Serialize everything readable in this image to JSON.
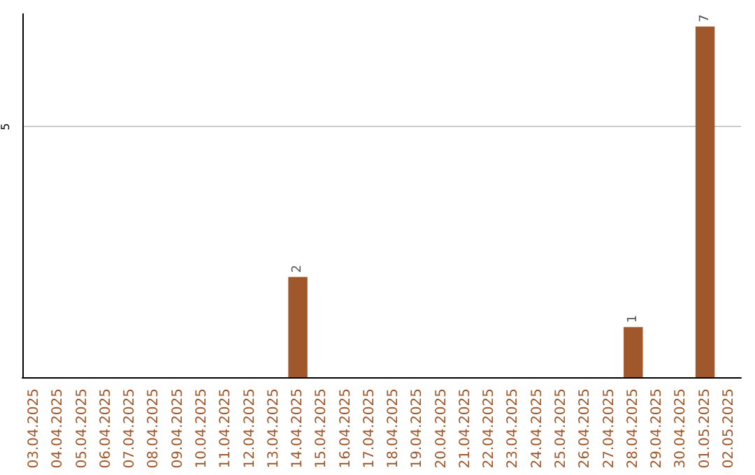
{
  "chart_data": {
    "type": "bar",
    "categories": [
      "03.04.2025",
      "04.04.2025",
      "05.04.2025",
      "06.04.2025",
      "07.04.2025",
      "08.04.2025",
      "09.04.2025",
      "10.04.2025",
      "11.04.2025",
      "12.04.2025",
      "13.04.2025",
      "14.04.2025",
      "15.04.2025",
      "16.04.2025",
      "17.04.2025",
      "18.04.2025",
      "19.04.2025",
      "20.04.2025",
      "21.04.2025",
      "22.04.2025",
      "23.04.2025",
      "24.04.2025",
      "25.04.2025",
      "26.04.2025",
      "27.04.2025",
      "28.04.2025",
      "29.04.2025",
      "30.04.2025",
      "01.05.2025",
      "02.05.2025"
    ],
    "values": [
      0,
      0,
      0,
      0,
      0,
      0,
      0,
      0,
      0,
      0,
      0,
      2,
      0,
      0,
      0,
      0,
      0,
      0,
      0,
      0,
      0,
      0,
      0,
      0,
      0,
      1,
      0,
      0,
      7,
      0
    ],
    "value_labels": [
      null,
      null,
      null,
      null,
      null,
      null,
      null,
      null,
      null,
      null,
      null,
      "2",
      null,
      null,
      null,
      null,
      null,
      null,
      null,
      null,
      null,
      null,
      null,
      null,
      null,
      "1",
      null,
      null,
      "7",
      null
    ],
    "color": "#a0572b",
    "ylim": [
      0,
      7.25
    ],
    "yticks": [
      5
    ],
    "grid": "y"
  }
}
